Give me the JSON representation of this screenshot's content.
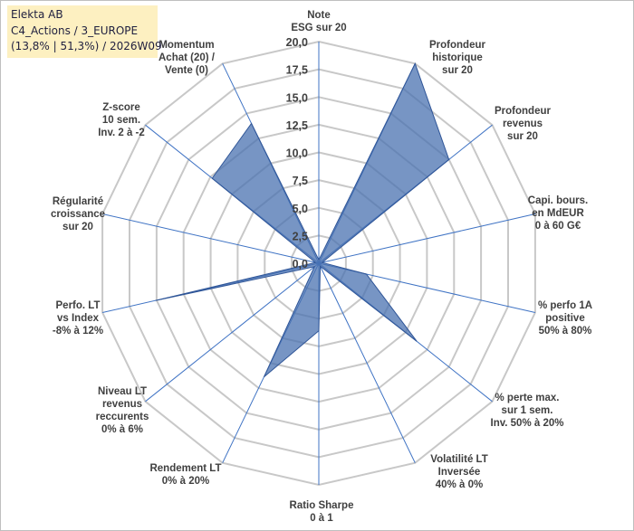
{
  "info": {
    "line1": "Elekta AB",
    "line2": "C4_Actions / 3_EUROPE",
    "line3": "(13,8% | 51,3%) / 2026W09"
  },
  "chart_data": {
    "type": "radar",
    "title": "",
    "rmax": 20,
    "ticks": [
      "0,0",
      "2,5",
      "5,0",
      "7,5",
      "10,0",
      "12,5",
      "15,0",
      "17,5",
      "20,0"
    ],
    "categories": [
      [
        "Note",
        "ESG sur 20"
      ],
      [
        "Profondeur",
        "historique",
        "sur 20"
      ],
      [
        "Profondeur",
        "revenus",
        "sur 20"
      ],
      [
        "Capi. bours.",
        "en MdEUR",
        "0 à 60 G€"
      ],
      [
        "% perfo 1A",
        "positive",
        "50% à 80%"
      ],
      [
        "% perte max.",
        "sur 1 sem.",
        "Inv. 50% à 20%"
      ],
      [
        "Volatilité LT",
        "Inversée",
        "40% à 0%"
      ],
      [
        "Ratio Sharpe",
        "0 à 1"
      ],
      [
        "Rendement LT",
        "0% à 20%"
      ],
      [
        "Niveau LT",
        "revenus",
        "reccurents",
        "0% à 6%"
      ],
      [
        "Perfo. LT",
        "vs Index",
        "-8% à 12%"
      ],
      [
        "Régularité",
        "croissance",
        "sur 20"
      ],
      [
        "Z-score",
        "10 sem.",
        "Inv. 2 à -2"
      ],
      [
        "Momentum",
        "Achat (20) /",
        "Vente (0)"
      ]
    ],
    "series": [
      {
        "name": "Elekta AB",
        "values": [
          0.3,
          20.0,
          15.0,
          0.3,
          4.4,
          11.3,
          0.3,
          6.1,
          11.4,
          0.5,
          15.1,
          0.3,
          12.3,
          14.0
        ],
        "color": "#4a72b0"
      }
    ]
  }
}
